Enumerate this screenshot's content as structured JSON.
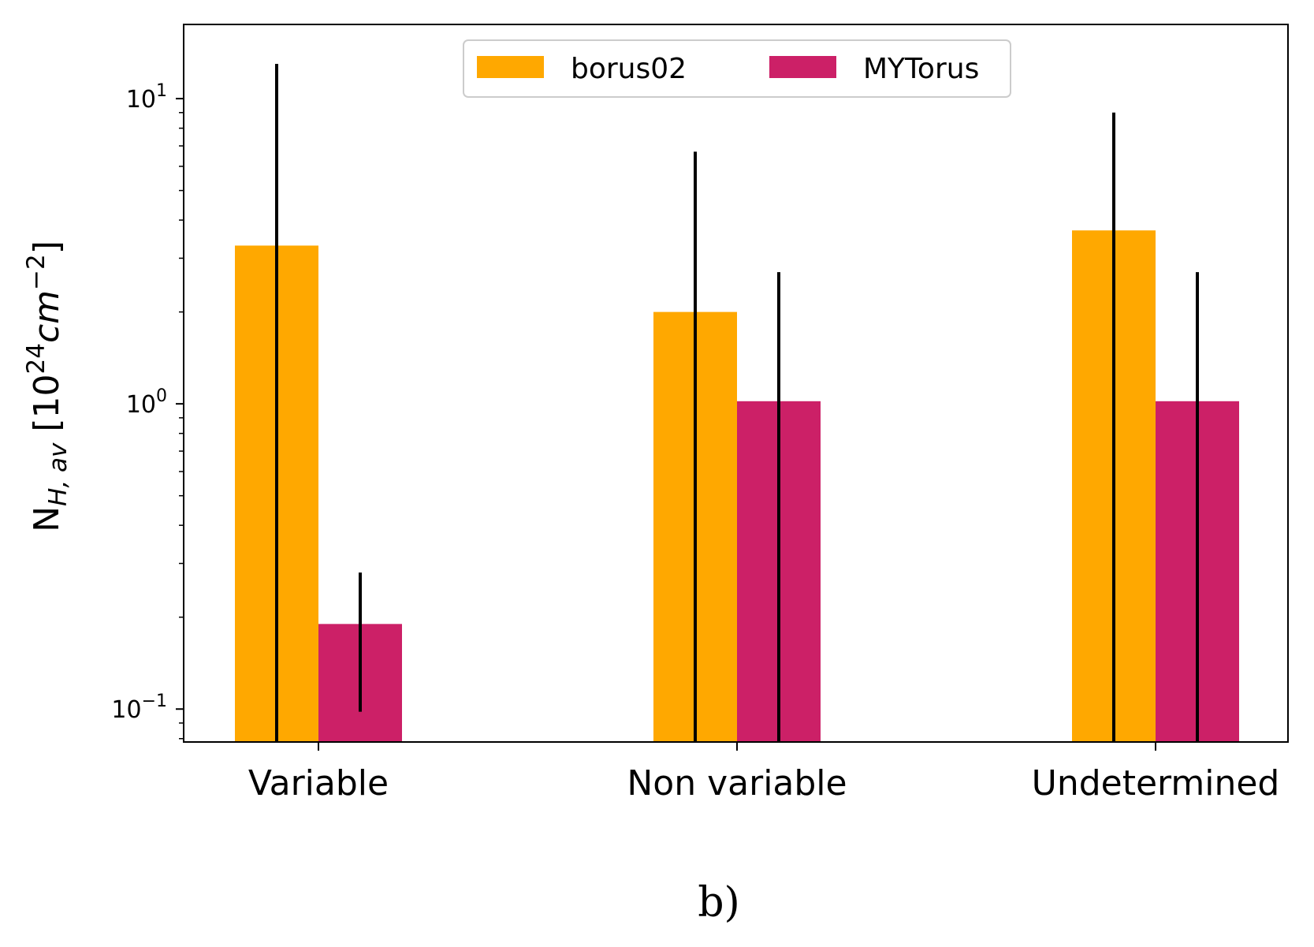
{
  "chart_data": {
    "type": "bar",
    "categories": [
      "Variable",
      "Non variable",
      "Undetermined"
    ],
    "series": [
      {
        "name": "borus02",
        "color": "#ffa800",
        "values": [
          3.3,
          2.0,
          3.7
        ],
        "err_low": [
          0.075,
          0.075,
          0.075
        ],
        "err_high": [
          13.0,
          6.7,
          9.0
        ]
      },
      {
        "name": "MYTorus",
        "color": "#cc2067",
        "values": [
          0.19,
          1.02,
          1.02
        ],
        "err_low": [
          0.098,
          0.075,
          0.075
        ],
        "err_high": [
          0.28,
          2.7,
          2.7
        ]
      }
    ],
    "yscale": "log",
    "ylim": [
      0.078,
      17.5
    ],
    "yticks": [
      {
        "value": 0.1,
        "base": "10",
        "exp": "−1"
      },
      {
        "value": 1,
        "base": "10",
        "exp": "0"
      },
      {
        "value": 10,
        "base": "10",
        "exp": "1"
      }
    ],
    "ylabel": {
      "main": "N",
      "sub": "H, av",
      "unit_open": " [10",
      "unit_exp1": "24",
      "unit_cm": "cm",
      "unit_exp2": "−2",
      "unit_close": "]"
    },
    "legend_position": "upper center",
    "errorbar_color": "#000000",
    "panel_label": "b)"
  }
}
